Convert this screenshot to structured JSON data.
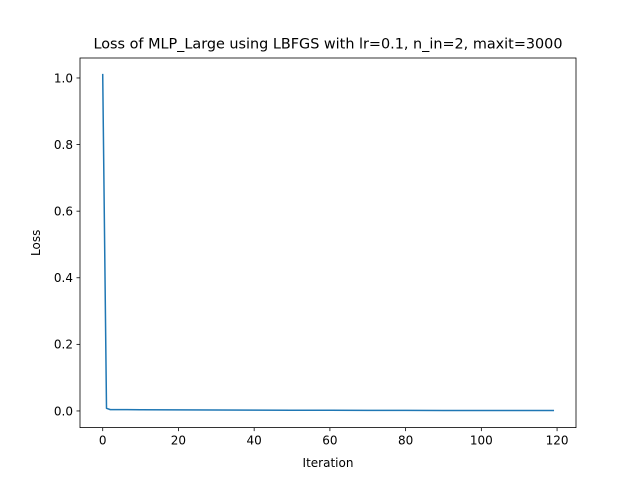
{
  "chart_data": {
    "type": "line",
    "title": "Loss of MLP_Large using LBFGS with lr=0.1, n_in=2, maxit=3000",
    "xlabel": "Iteration",
    "ylabel": "Loss",
    "xlim": [
      -6,
      125
    ],
    "ylim": [
      -0.05,
      1.06
    ],
    "xticks": [
      0,
      20,
      40,
      60,
      80,
      100,
      120
    ],
    "xtick_labels": [
      "0",
      "20",
      "40",
      "60",
      "80",
      "100",
      "120"
    ],
    "yticks": [
      0.0,
      0.2,
      0.4,
      0.6,
      0.8,
      1.0
    ],
    "ytick_labels": [
      "0.0",
      "0.2",
      "0.4",
      "0.6",
      "0.8",
      "1.0"
    ],
    "grid": false,
    "legend": "none",
    "series": [
      {
        "name": "loss",
        "color": "#1f77b4",
        "x": [
          0,
          1,
          2,
          5,
          10,
          20,
          30,
          40,
          50,
          60,
          70,
          80,
          90,
          100,
          110,
          119
        ],
        "y": [
          1.01,
          0.008,
          0.004,
          0.004,
          0.0038,
          0.0033,
          0.0029,
          0.0025,
          0.0022,
          0.002,
          0.0018,
          0.0016,
          0.0015,
          0.0014,
          0.0013,
          0.0012
        ]
      }
    ]
  }
}
